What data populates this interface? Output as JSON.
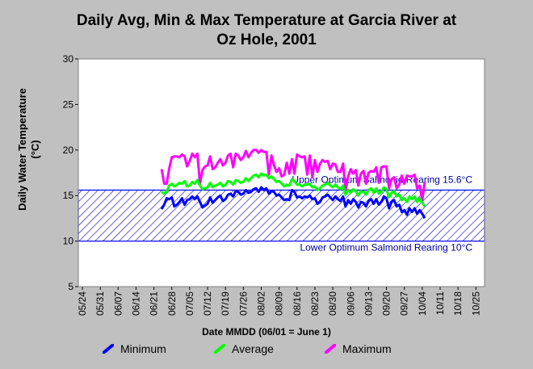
{
  "chart_data": {
    "type": "line",
    "title_line1": "Daily Avg, Min & Max Temperature at Garcia River at",
    "title_line2": "Oz Hole, 2001",
    "xlabel": "Date MMDD (06/01 = June 1)",
    "ylabel_line1": "Daily Water Temperature",
    "ylabel_line2": "(°C)",
    "ylim": [
      5,
      30
    ],
    "yticks": [
      5,
      10,
      15,
      20,
      25,
      30
    ],
    "x_ticks": [
      "05/24",
      "05/31",
      "06/07",
      "06/14",
      "06/21",
      "06/28",
      "07/05",
      "07/12",
      "07/19",
      "07/26",
      "08/02",
      "08/09",
      "08/16",
      "08/23",
      "08/30",
      "09/06",
      "09/13",
      "09/20",
      "09/27",
      "10/04",
      "10/11",
      "10/18",
      "10/25"
    ],
    "grid": false,
    "band": {
      "low": 10,
      "high": 15.6
    },
    "annotations": {
      "upper": "Upper Optimum Salmonid Rearing 15.6°C",
      "lower": "Lower Optimum Salmonid Rearing 10°C"
    },
    "legend_position": "bottom",
    "start_date": "06/24",
    "series": [
      {
        "name": "Minimum",
        "color": "#0000ff",
        "values": [
          13.5,
          14.0,
          14.7,
          14.6,
          14.8,
          13.8,
          14.0,
          14.3,
          14.7,
          14.0,
          14.5,
          14.6,
          14.9,
          14.6,
          14.9,
          14.3,
          13.7,
          13.9,
          14.1,
          14.8,
          14.2,
          14.5,
          14.8,
          15.0,
          14.4,
          14.6,
          15.1,
          15.2,
          14.9,
          15.5,
          15.4,
          15.1,
          15.2,
          15.6,
          15.3,
          15.4,
          15.7,
          15.8,
          15.4,
          15.9,
          15.6,
          15.8,
          15.2,
          15.5,
          15.4,
          15.0,
          15.1,
          14.8,
          14.5,
          14.6,
          14.5,
          15.6,
          15.4,
          14.8,
          14.9,
          14.7,
          14.9,
          14.8,
          15.0,
          14.6,
          14.7,
          14.1,
          14.3,
          14.8,
          14.9,
          15.1,
          14.8,
          14.5,
          14.9,
          14.6,
          14.4,
          14.9,
          13.8,
          14.5,
          14.1,
          14.6,
          14.3,
          13.7,
          14.3,
          14.2,
          13.8,
          14.4,
          14.6,
          14.1,
          14.6,
          14.0,
          14.3,
          14.9,
          14.7,
          13.6,
          14.3,
          14.5,
          13.8,
          14.0,
          13.2,
          13.4,
          12.9,
          13.6,
          13.2,
          13.6,
          13.0,
          13.4,
          13.0,
          12.5
        ]
      },
      {
        "name": "Average",
        "color": "#00ff00",
        "values": [
          15.4,
          15.2,
          15.5,
          16.1,
          16.3,
          16.0,
          16.2,
          16.4,
          16.3,
          16.6,
          16.0,
          16.1,
          16.5,
          16.3,
          16.7,
          16.1,
          15.7,
          15.8,
          15.9,
          16.4,
          15.9,
          16.1,
          16.2,
          16.4,
          16.0,
          16.2,
          16.6,
          16.5,
          16.2,
          16.7,
          16.6,
          16.4,
          16.5,
          16.9,
          16.6,
          16.9,
          17.2,
          17.3,
          17.0,
          17.4,
          17.2,
          17.3,
          16.9,
          17.1,
          16.8,
          16.5,
          16.6,
          16.3,
          16.0,
          16.2,
          16.1,
          16.8,
          16.6,
          16.2,
          16.2,
          16.0,
          16.2,
          16.2,
          16.3,
          15.9,
          16.0,
          15.6,
          15.8,
          16.1,
          16.2,
          16.4,
          16.1,
          15.9,
          16.2,
          15.9,
          15.7,
          16.1,
          15.1,
          15.6,
          15.3,
          15.7,
          15.5,
          15.0,
          15.5,
          15.4,
          15.1,
          15.6,
          15.8,
          15.3,
          15.8,
          15.2,
          15.4,
          15.9,
          15.7,
          14.8,
          15.3,
          15.5,
          14.9,
          15.1,
          14.5,
          14.7,
          14.3,
          14.9,
          14.6,
          14.9,
          14.3,
          14.7,
          14.2,
          13.8
        ]
      },
      {
        "name": "Maximum",
        "color": "#ff00ff",
        "values": [
          17.9,
          16.3,
          16.3,
          18.0,
          19.2,
          19.3,
          19.3,
          19.2,
          19.5,
          19.3,
          18.2,
          18.8,
          19.6,
          19.2,
          19.6,
          16.3,
          17.8,
          18.2,
          18.3,
          19.3,
          17.9,
          18.1,
          18.6,
          19.0,
          18.3,
          18.6,
          19.4,
          19.6,
          18.1,
          19.6,
          19.4,
          18.9,
          19.2,
          19.9,
          19.2,
          19.7,
          20.0,
          20.0,
          19.7,
          20.0,
          19.8,
          19.8,
          17.3,
          19.4,
          18.3,
          17.6,
          18.0,
          17.1,
          17.3,
          18.6,
          17.4,
          19.0,
          17.4,
          19.5,
          19.3,
          19.2,
          19.3,
          17.3,
          19.4,
          17.0,
          18.9,
          17.6,
          18.5,
          18.9,
          18.7,
          18.8,
          17.9,
          18.5,
          18.4,
          17.6,
          17.6,
          18.5,
          15.6,
          17.1,
          17.9,
          17.4,
          17.8,
          16.1,
          17.4,
          17.7,
          16.3,
          17.5,
          17.7,
          17.6,
          18.1,
          16.4,
          18.1,
          18.2,
          18.2,
          15.8,
          16.8,
          17.0,
          15.8,
          16.2,
          17.2,
          16.3,
          17.2,
          17.1,
          17.1,
          17.3,
          15.8,
          16.1,
          14.5,
          16.5
        ]
      }
    ]
  }
}
